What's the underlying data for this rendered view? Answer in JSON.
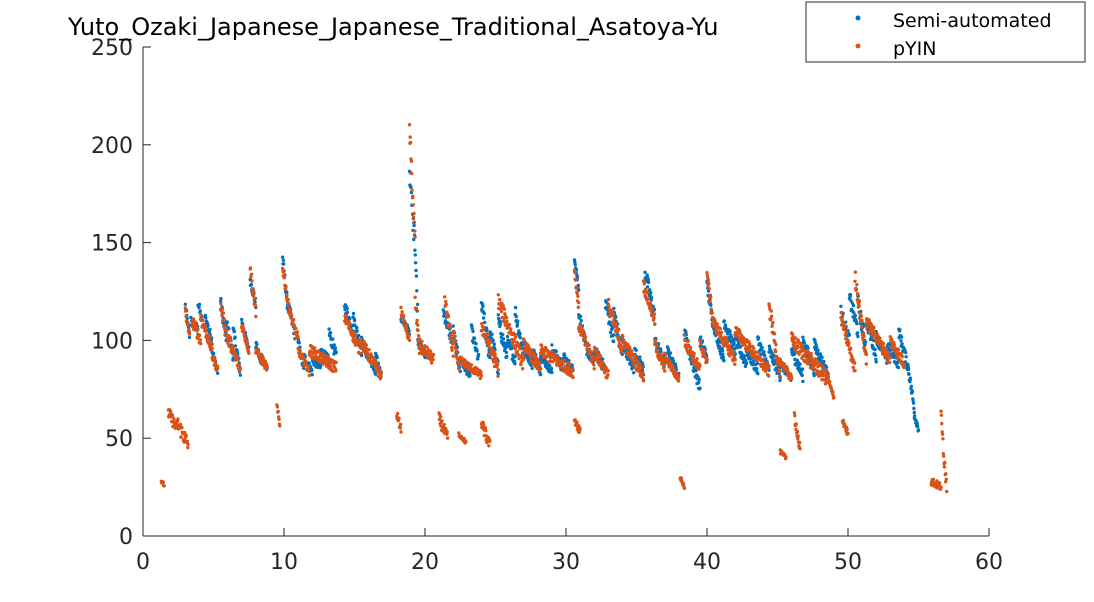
{
  "chart_data": {
    "type": "scatter",
    "title": "Yuto_Ozaki_Japanese_Japanese_Traditional_Asatoya-Yu",
    "xlabel": "",
    "ylabel": "",
    "xlim": [
      0,
      60
    ],
    "ylim": [
      0,
      250
    ],
    "xticks": [
      0,
      10,
      20,
      30,
      40,
      50,
      60
    ],
    "yticks": [
      0,
      50,
      100,
      150,
      200,
      250
    ],
    "grid": false,
    "legend_position": "top-right",
    "series": [
      {
        "name": "Semi-automated",
        "color": "#0072BD",
        "segments": [
          [
            3.0,
            3.3,
            118,
            102,
            1.5
          ],
          [
            3.4,
            3.9,
            110,
            105,
            3
          ],
          [
            3.9,
            4.2,
            120,
            108,
            3
          ],
          [
            4.4,
            4.9,
            112,
            100,
            2
          ],
          [
            4.9,
            5.3,
            95,
            84,
            2
          ],
          [
            5.5,
            5.9,
            120,
            100,
            3
          ],
          [
            5.9,
            6.4,
            110,
            92,
            3
          ],
          [
            6.4,
            6.9,
            105,
            84,
            3
          ],
          [
            7.0,
            7.5,
            110,
            95,
            2
          ],
          [
            7.6,
            8.0,
            132,
            118,
            3
          ],
          [
            8.0,
            8.4,
            98,
            88,
            2
          ],
          [
            8.4,
            8.8,
            92,
            86,
            2
          ],
          [
            9.9,
            10.2,
            142,
            122,
            3
          ],
          [
            10.2,
            10.8,
            120,
            103,
            3
          ],
          [
            11.0,
            11.4,
            100,
            85,
            2
          ],
          [
            11.4,
            12.0,
            92,
            84,
            2
          ],
          [
            12.0,
            12.6,
            90,
            86,
            2
          ],
          [
            12.6,
            13.2,
            95,
            90,
            2
          ],
          [
            13.2,
            13.7,
            104,
            92,
            3
          ],
          [
            14.3,
            14.9,
            118,
            105,
            3
          ],
          [
            14.9,
            15.5,
            112,
            95,
            3
          ],
          [
            15.5,
            16.0,
            100,
            90,
            2
          ],
          [
            16.0,
            16.5,
            92,
            83,
            2
          ],
          [
            16.5,
            16.9,
            92,
            82,
            2
          ],
          [
            18.3,
            18.9,
            112,
            104,
            2
          ],
          [
            18.9,
            19.2,
            187,
            155,
            5
          ],
          [
            19.2,
            19.5,
            165,
            110,
            5
          ],
          [
            19.5,
            20.0,
            100,
            92,
            2
          ],
          [
            21.3,
            21.9,
            115,
            100,
            3
          ],
          [
            22.0,
            22.5,
            105,
            85,
            3
          ],
          [
            22.5,
            23.2,
            90,
            82,
            2
          ],
          [
            23.3,
            23.8,
            105,
            90,
            3
          ],
          [
            24.0,
            24.6,
            118,
            92,
            5
          ],
          [
            24.6,
            25.2,
            105,
            85,
            4
          ],
          [
            25.2,
            25.8,
            110,
            92,
            4
          ],
          [
            25.8,
            26.4,
            100,
            90,
            3
          ],
          [
            26.4,
            27.0,
            115,
            92,
            4
          ],
          [
            27.0,
            27.6,
            98,
            88,
            3
          ],
          [
            27.6,
            28.2,
            95,
            85,
            3
          ],
          [
            28.2,
            29.0,
            92,
            84,
            2
          ],
          [
            29.0,
            29.8,
            95,
            86,
            3
          ],
          [
            29.8,
            30.5,
            92,
            85,
            2
          ],
          [
            30.6,
            30.9,
            145,
            125,
            4
          ],
          [
            30.9,
            31.3,
            115,
            100,
            3
          ],
          [
            31.3,
            32.0,
            98,
            88,
            3
          ],
          [
            32.0,
            32.8,
            95,
            85,
            3
          ],
          [
            32.8,
            33.4,
            120,
            100,
            4
          ],
          [
            33.4,
            34.0,
            115,
            92,
            4
          ],
          [
            34.0,
            34.8,
            100,
            85,
            3
          ],
          [
            34.8,
            35.5,
            95,
            85,
            3
          ],
          [
            35.6,
            36.3,
            135,
            112,
            4
          ],
          [
            36.3,
            37.0,
            100,
            88,
            3
          ],
          [
            37.2,
            38.0,
            95,
            82,
            2
          ],
          [
            38.4,
            38.9,
            105,
            90,
            3
          ],
          [
            38.9,
            39.5,
            90,
            76,
            3
          ],
          [
            39.5,
            40.0,
            100,
            92,
            3
          ],
          [
            40.0,
            40.4,
            128,
            110,
            3
          ],
          [
            40.4,
            41.2,
            110,
            90,
            3
          ],
          [
            41.2,
            42.0,
            110,
            95,
            3
          ],
          [
            42.0,
            42.8,
            100,
            88,
            3
          ],
          [
            42.8,
            43.6,
            95,
            85,
            3
          ],
          [
            43.6,
            44.4,
            100,
            85,
            3
          ],
          [
            44.4,
            45.2,
            95,
            82,
            3
          ],
          [
            45.2,
            46.0,
            88,
            80,
            2
          ],
          [
            46.0,
            46.8,
            95,
            82,
            3
          ],
          [
            46.8,
            47.6,
            100,
            85,
            3
          ],
          [
            47.6,
            48.6,
            98,
            82,
            3
          ],
          [
            49.5,
            50.1,
            115,
            100,
            3
          ],
          [
            50.1,
            50.7,
            122,
            105,
            4
          ],
          [
            50.7,
            51.3,
            120,
            95,
            4
          ],
          [
            51.3,
            52.0,
            110,
            92,
            3
          ],
          [
            52.0,
            52.8,
            102,
            90,
            3
          ],
          [
            52.8,
            53.6,
            98,
            88,
            3
          ],
          [
            53.6,
            54.3,
            105,
            85,
            3
          ],
          [
            54.3,
            54.7,
            85,
            65,
            3
          ],
          [
            54.7,
            55.0,
            62,
            55,
            2
          ]
        ]
      },
      {
        "name": "pYIN",
        "color": "#D95319",
        "segments": [
          [
            1.3,
            1.5,
            28,
            26,
            1
          ],
          [
            1.8,
            2.4,
            63,
            55,
            3
          ],
          [
            2.4,
            3.2,
            58,
            47,
            4
          ],
          [
            3.0,
            3.3,
            115,
            102,
            2
          ],
          [
            3.5,
            4.1,
            110,
            100,
            3
          ],
          [
            4.1,
            4.9,
            112,
            95,
            3
          ],
          [
            4.9,
            5.3,
            92,
            85,
            2
          ],
          [
            5.5,
            6.1,
            118,
            98,
            3
          ],
          [
            6.1,
            6.9,
            100,
            85,
            3
          ],
          [
            7.0,
            7.5,
            108,
            95,
            2
          ],
          [
            7.6,
            8.0,
            138,
            115,
            3
          ],
          [
            8.0,
            8.8,
            95,
            86,
            2
          ],
          [
            9.5,
            9.7,
            66,
            56,
            2
          ],
          [
            9.9,
            10.3,
            138,
            118,
            3
          ],
          [
            10.3,
            11.0,
            118,
            100,
            3
          ],
          [
            11.0,
            11.8,
            95,
            84,
            2
          ],
          [
            11.8,
            13.7,
            95,
            86,
            3
          ],
          [
            14.3,
            15.4,
            112,
            95,
            3
          ],
          [
            15.4,
            16.9,
            100,
            82,
            3
          ],
          [
            18.0,
            18.3,
            62,
            55,
            2
          ],
          [
            18.3,
            18.9,
            115,
            100,
            2
          ],
          [
            18.9,
            19.3,
            208,
            150,
            5
          ],
          [
            19.3,
            19.6,
            120,
            95,
            4
          ],
          [
            19.6,
            20.6,
            98,
            90,
            3
          ],
          [
            21.0,
            21.6,
            60,
            50,
            3
          ],
          [
            21.4,
            22.0,
            120,
            95,
            4
          ],
          [
            22.0,
            22.4,
            105,
            85,
            3
          ],
          [
            22.4,
            22.9,
            52,
            48,
            1
          ],
          [
            22.5,
            24.0,
            90,
            82,
            2
          ],
          [
            24.0,
            24.6,
            58,
            46,
            3
          ],
          [
            24.0,
            25.2,
            108,
            85,
            4
          ],
          [
            25.2,
            27.0,
            120,
            88,
            4
          ],
          [
            27.0,
            28.2,
            98,
            85,
            3
          ],
          [
            28.2,
            30.5,
            95,
            84,
            3
          ],
          [
            30.6,
            30.9,
            135,
            118,
            3
          ],
          [
            30.6,
            31.0,
            60,
            53,
            2
          ],
          [
            30.9,
            32.0,
            108,
            88,
            3
          ],
          [
            32.0,
            33.0,
            95,
            82,
            3
          ],
          [
            33.0,
            34.0,
            118,
            95,
            4
          ],
          [
            34.0,
            35.5,
            100,
            82,
            3
          ],
          [
            35.5,
            36.3,
            128,
            110,
            3
          ],
          [
            36.3,
            37.0,
            98,
            86,
            3
          ],
          [
            37.0,
            38.0,
            92,
            80,
            2
          ],
          [
            38.1,
            38.4,
            30,
            25,
            1
          ],
          [
            38.4,
            39.5,
            100,
            85,
            3
          ],
          [
            39.5,
            40.0,
            98,
            90,
            3
          ],
          [
            40.0,
            40.4,
            134,
            112,
            3
          ],
          [
            40.4,
            42.0,
            110,
            90,
            3
          ],
          [
            42.0,
            44.4,
            105,
            84,
            3
          ],
          [
            44.4,
            45.2,
            118,
            82,
            4
          ],
          [
            45.2,
            45.6,
            43,
            40,
            1
          ],
          [
            45.2,
            46.0,
            90,
            80,
            2
          ],
          [
            46.2,
            46.6,
            62,
            44,
            3
          ],
          [
            46.0,
            48.6,
            100,
            80,
            4
          ],
          [
            48.6,
            49.0,
            80,
            70,
            2
          ],
          [
            49.6,
            50.0,
            60,
            52,
            2
          ],
          [
            49.5,
            50.5,
            112,
            85,
            3
          ],
          [
            50.5,
            51.3,
            133,
            90,
            4
          ],
          [
            51.3,
            53.0,
            110,
            90,
            3
          ],
          [
            53.0,
            54.0,
            100,
            88,
            3
          ],
          [
            55.9,
            56.6,
            28,
            25,
            2
          ],
          [
            56.6,
            57.0,
            60,
            25,
            5
          ]
        ]
      }
    ]
  }
}
